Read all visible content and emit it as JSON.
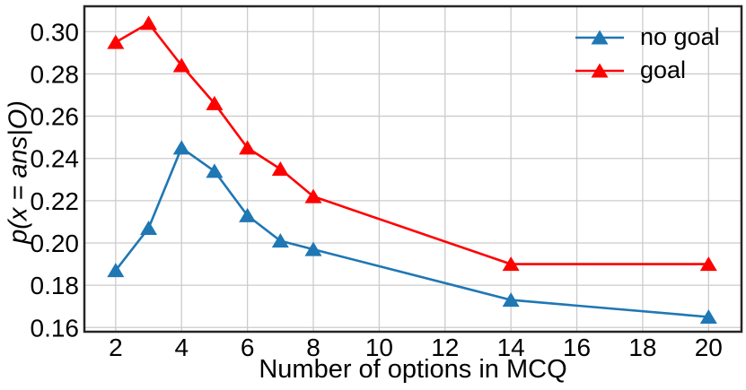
{
  "chart_data": {
    "type": "line",
    "title": "",
    "xlabel": "Number of options in MCQ",
    "ylabel": "p(x = ans|O)",
    "x": [
      2,
      3,
      4,
      5,
      6,
      7,
      8,
      14,
      20
    ],
    "series": [
      {
        "name": "no goal",
        "color": "#1f77b4",
        "marker": "triangle-up",
        "values": [
          0.187,
          0.207,
          0.245,
          0.234,
          0.213,
          0.201,
          0.197,
          0.173,
          0.165
        ]
      },
      {
        "name": "goal",
        "color": "#ff0000",
        "marker": "triangle-up",
        "values": [
          0.295,
          0.304,
          0.284,
          0.266,
          0.245,
          0.235,
          0.222,
          0.19,
          0.19
        ]
      }
    ],
    "xticks": [
      "2",
      "4",
      "6",
      "8",
      "10",
      "12",
      "14",
      "16",
      "18",
      "20"
    ],
    "yticks": [
      "0.16",
      "0.18",
      "0.20",
      "0.22",
      "0.24",
      "0.26",
      "0.28",
      "0.30"
    ],
    "xlim": [
      1.05,
      21.0
    ],
    "ylim": [
      0.158,
      0.312
    ],
    "grid": true,
    "grid_color": "#cccccc",
    "spine_color": "#262626",
    "background": "#ffffff",
    "text_color": "#000000",
    "legend_position": "upper right",
    "legend_frame": false
  }
}
